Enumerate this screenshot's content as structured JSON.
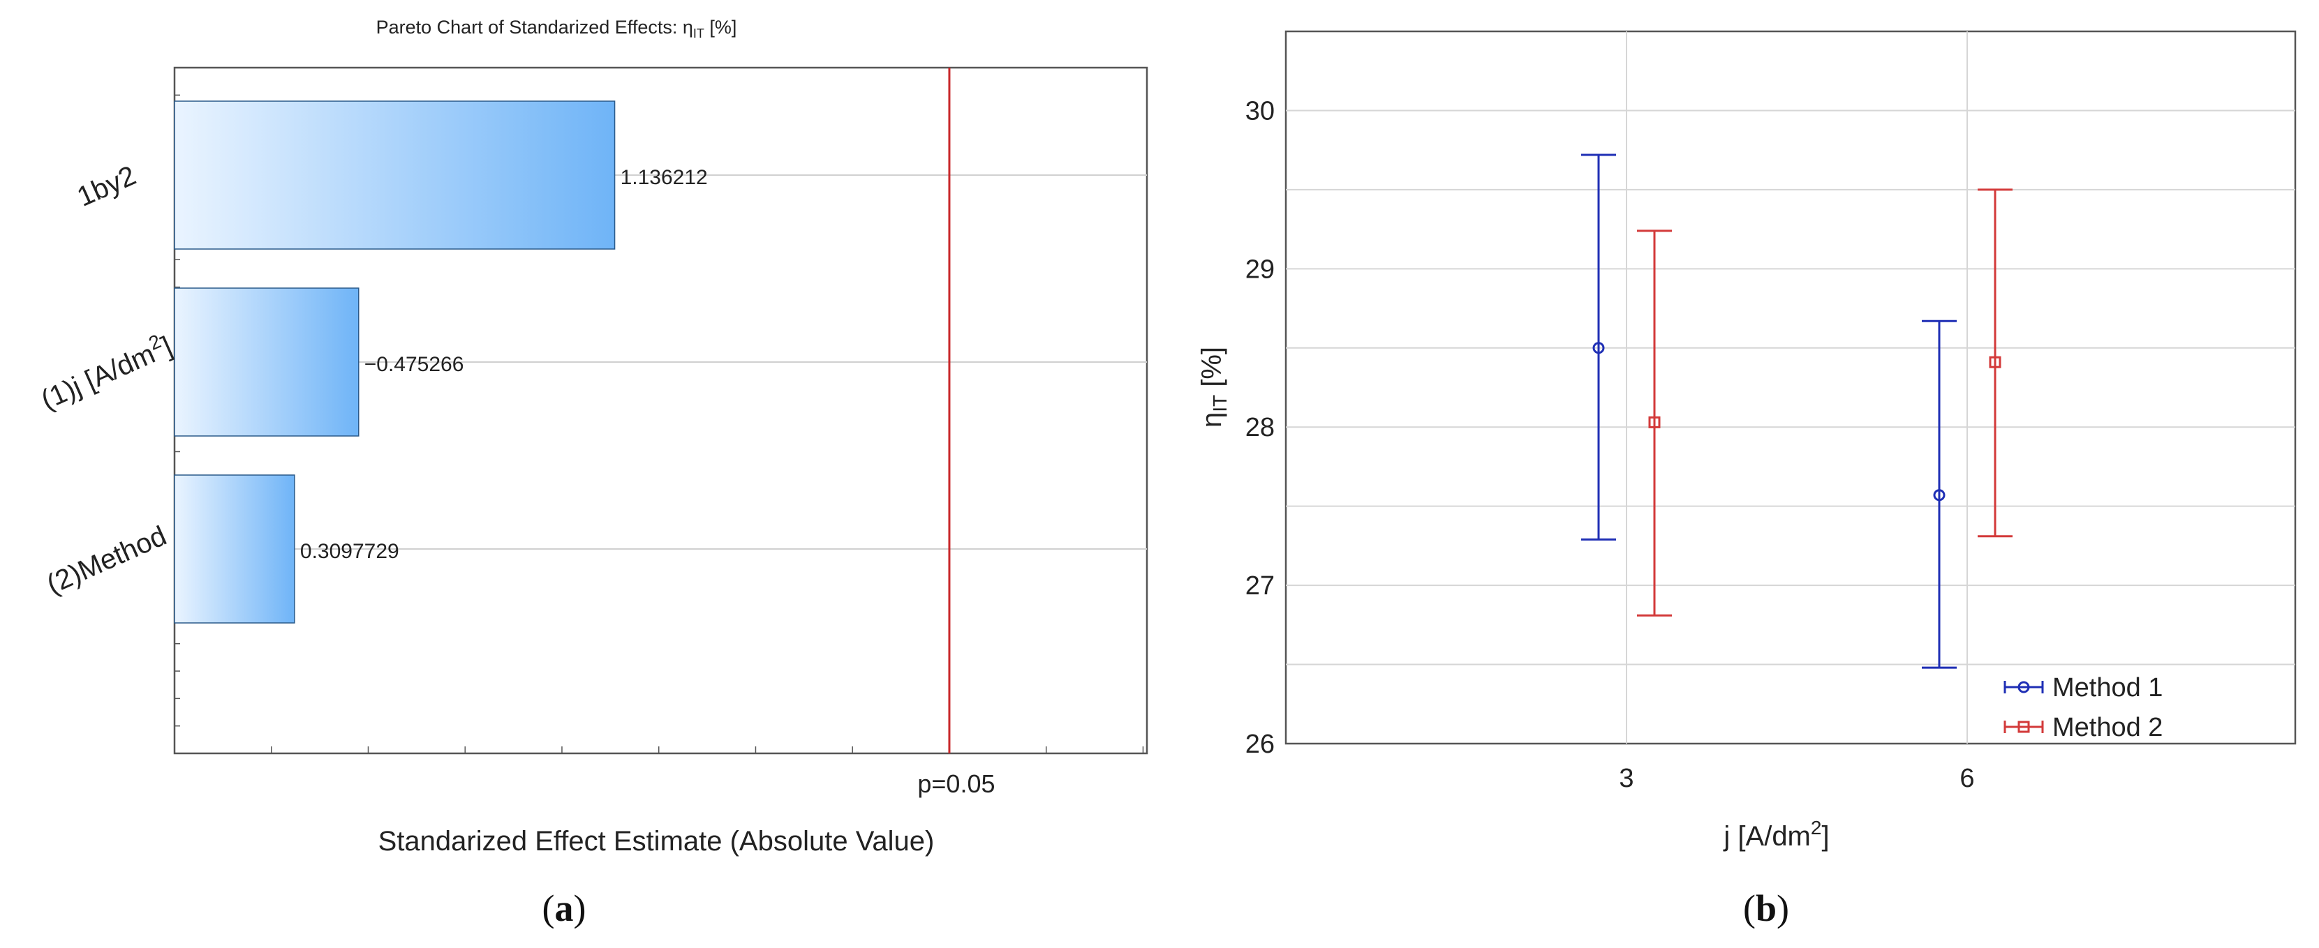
{
  "panel_a": {
    "label_prefix": "(",
    "label_letter": "a",
    "label_suffix": ")"
  },
  "panel_b": {
    "label_prefix": "(",
    "label_letter": "b",
    "label_suffix": ")"
  },
  "chart_data": [
    {
      "type": "bar",
      "orientation": "horizontal",
      "title_main": "Pareto Chart of Standarized Effects: η",
      "title_sub": "IT",
      "title_tail": " [%]",
      "xlabel": "Standarized Effect Estimate (Absolute Value)",
      "ylabel": "",
      "xlim": [
        0,
        2.51
      ],
      "categories": [
        "1by2",
        "(1)j [A/dm²]",
        "(2)Method"
      ],
      "category_labels": [
        {
          "main": "1by2",
          "sup": "",
          "tail": ""
        },
        {
          "main": "(1)j [A/dm",
          "sup": "2",
          "tail": "]"
        },
        {
          "main": "(2)Method",
          "sup": "",
          "tail": ""
        }
      ],
      "values": [
        1.136212,
        0.475266,
        0.3097729
      ],
      "value_labels": [
        "1.136212",
        "−0.475266",
        "0.3097729"
      ],
      "reference_line": {
        "value": 2.0,
        "label": "p=0.05"
      },
      "grid": true,
      "colors": {
        "bar_light": "#eaf4ff",
        "bar_dark": "#6fb4f7",
        "bar_stroke": "#2a5a8a",
        "ref": "#c8282b"
      }
    },
    {
      "type": "scatter",
      "subtype": "mean_with_error_bars",
      "xlabel_main": "j [A/dm",
      "xlabel_sup": "2",
      "xlabel_tail": "]",
      "ylabel_main": "η",
      "ylabel_sub": "IT",
      "ylabel_tail": " [%]",
      "x_ticks": [
        "3",
        "6"
      ],
      "y_ticks": [
        "26",
        "27",
        "28",
        "29",
        "30"
      ],
      "ylim": [
        26,
        30.5
      ],
      "grid": true,
      "legend_position": "bottom-right",
      "series": [
        {
          "name": "Method 1",
          "marker": "circle",
          "color": "#1f2fb5",
          "points": [
            {
              "x": 3,
              "mean": 28.5,
              "lower": 27.29,
              "upper": 29.72
            },
            {
              "x": 6,
              "mean": 27.57,
              "lower": 26.48,
              "upper": 28.67
            }
          ]
        },
        {
          "name": "Method 2",
          "marker": "square",
          "color": "#d33a3a",
          "points": [
            {
              "x": 3,
              "mean": 28.03,
              "lower": 26.81,
              "upper": 29.24
            },
            {
              "x": 6,
              "mean": 28.41,
              "lower": 27.31,
              "upper": 29.5
            }
          ]
        }
      ]
    }
  ]
}
